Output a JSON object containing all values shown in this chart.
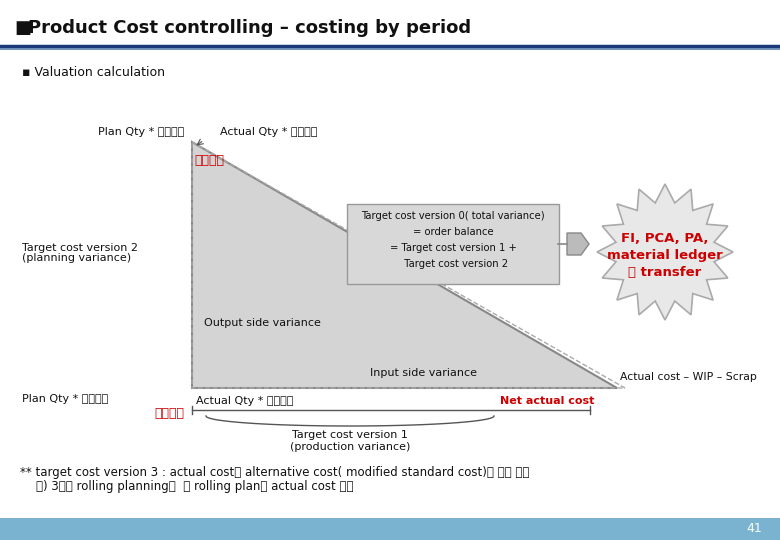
{
  "title": "Product Cost controlling – costing by period",
  "bullet": "■",
  "section_bullet": "▪",
  "section_label": "Valuation calculation",
  "bg_color": "#ffffff",
  "footer_bg": "#7ab3d0",
  "footer_text": "41",
  "triangle_fill": "#d4d4d4",
  "triangle_edge": "#888888",
  "starburst_fill": "#e8e8e8",
  "starburst_edge": "#aaaaaa",
  "box_fill": "#d8d8d8",
  "box_edge": "#999999",
  "connector_fill": "#bbbbbb",
  "red_color": "#cc0000",
  "dark_color": "#111111",
  "label_plan_qty_std": "Plan Qty * 표준원가",
  "label_actual_qty_std": "Actual Qty * 표준원가",
  "label_std_price": "표준원가",
  "label_target_v2_1": "Target cost version 2",
  "label_target_v2_2": "(planning variance)",
  "label_output_var": "Output side variance",
  "label_target_v0_line1": "Target cost version 0( total variance)",
  "label_target_v0_line2": "= order balance",
  "label_target_v0_line3": "= Target cost version 1 +",
  "label_target_v0_line4": "  Target cost version 2",
  "label_fi_line1": "FI, PCA, PA,",
  "label_fi_line2": "material ledger",
  "label_fi_line3": "에 transfer",
  "label_plan_qty_actual": "Plan Qty * 사전원가",
  "label_input_var": "Input side variance",
  "label_actual_cost": "Actual cost – WIP – Scrap",
  "label_sajeown": "사전원가",
  "label_actual_qty_actual": "Actual Qty * 사전원가",
  "label_net_actual": "Net actual cost",
  "label_target_v1_line1": "Target cost version 1",
  "label_target_v1_line2": "(production variance)",
  "note_line1": "** target cost version 3 : actual cost를 alternative cost( modified standard cost)와 비교 분석",
  "note_line2": "예) 3개월 rolling planning시  월 rolling plan과 actual cost 비교"
}
